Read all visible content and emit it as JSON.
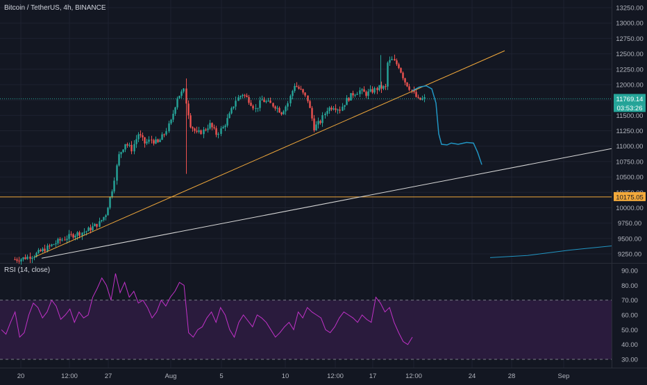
{
  "header": {
    "title": "Bitcoin / TetherUS, 4h, BINANCE"
  },
  "rsi_panel": {
    "title": "RSI (14, close)"
  },
  "price_axis": {
    "ticks": [
      "13250.00",
      "13000.00",
      "12750.00",
      "12500.00",
      "12250.00",
      "12000.00",
      "11750.00",
      "11500.00",
      "11250.00",
      "11000.00",
      "10750.00",
      "10500.00",
      "10250.00",
      "10000.00",
      "9750.00",
      "9500.00",
      "9250.00"
    ],
    "last_price_label": "11769.14",
    "countdown_label": "03:53:26",
    "line_price_label": "10175.05"
  },
  "rsi_axis": {
    "ticks": [
      "90.00",
      "80.00",
      "70.00",
      "60.00",
      "50.00",
      "40.00",
      "30.00"
    ]
  },
  "time_axis": {
    "ticks": [
      "20",
      "12:00",
      "27",
      "Aug",
      "5",
      "10",
      "12:00",
      "17",
      "12:00",
      "24",
      "28",
      "Sep"
    ]
  },
  "colors": {
    "background": "#131722",
    "up": "#26a69a",
    "down": "#ef5350",
    "trendline_orange": "#f2a93b",
    "support_white": "#d9d9d9",
    "horizontal_line": "#f2a93b",
    "last_price_line": "#26a69a",
    "projection_blue": "#2196c4",
    "rsi_line": "#c232c9",
    "rsi_band": "#2a1b3d",
    "axis_text": "#b2b5be"
  },
  "chart_data": {
    "type": "candlestick",
    "symbol": "Bitcoin / TetherUS",
    "interval": "4h",
    "exchange": "BINANCE",
    "ylim": [
      9200,
      13350
    ],
    "last_price": 11769.14,
    "horizontal_level": 10175.05,
    "price_path": [
      [
        "Jul 19 12:00",
        9160
      ],
      [
        "Jul 20 00:00",
        9170
      ],
      [
        "Jul 21 00:00",
        9230
      ],
      [
        "Jul 22 00:00",
        9350
      ],
      [
        "Jul 23 00:00",
        9470
      ],
      [
        "Jul 24 00:00",
        9560
      ],
      [
        "Jul 25 00:00",
        9620
      ],
      [
        "Jul 26 00:00",
        9750
      ],
      [
        "Jul 26 12:00",
        9900
      ],
      [
        "Jul 27 00:00",
        10300
      ],
      [
        "Jul 27 12:00",
        10850
      ],
      [
        "Jul 28 00:00",
        11050
      ],
      [
        "Jul 28 12:00",
        10950
      ],
      [
        "Jul 29 00:00",
        11200
      ],
      [
        "Jul 29 12:00",
        11050
      ],
      [
        "Jul 30 00:00",
        11100
      ],
      [
        "Jul 30 12:00",
        11050
      ],
      [
        "Jul 31 00:00",
        11200
      ],
      [
        "Jul 31 12:00",
        11400
      ],
      [
        "Aug 1 00:00",
        11800
      ],
      [
        "Aug 1 12:00",
        11900
      ],
      [
        "Aug 2 00:00",
        11350
      ],
      [
        "Aug 2 12:00",
        11200
      ],
      [
        "Aug 3 00:00",
        11250
      ],
      [
        "Aug 3 12:00",
        11350
      ],
      [
        "Aug 4 00:00",
        11200
      ],
      [
        "Aug 4 12:00",
        11300
      ],
      [
        "Aug 5 00:00",
        11500
      ],
      [
        "Aug 5 12:00",
        11750
      ],
      [
        "Aug 6 00:00",
        11850
      ],
      [
        "Aug 6 12:00",
        11750
      ],
      [
        "Aug 7 00:00",
        11600
      ],
      [
        "Aug 7 12:00",
        11750
      ],
      [
        "Aug 8 00:00",
        11700
      ],
      [
        "Aug 8 12:00",
        11650
      ],
      [
        "Aug 9 00:00",
        11550
      ],
      [
        "Aug 9 12:00",
        11700
      ],
      [
        "Aug 10 00:00",
        12000
      ],
      [
        "Aug 10 12:00",
        11900
      ],
      [
        "Aug 11 00:00",
        11750
      ],
      [
        "Aug 11 12:00",
        11300
      ],
      [
        "Aug 12 00:00",
        11400
      ],
      [
        "Aug 12 12:00",
        11600
      ],
      [
        "Aug 13 00:00",
        11650
      ],
      [
        "Aug 13 12:00",
        11600
      ],
      [
        "Aug 14 00:00",
        11750
      ],
      [
        "Aug 14 12:00",
        11850
      ],
      [
        "Aug 15 00:00",
        11900
      ],
      [
        "Aug 15 12:00",
        11850
      ],
      [
        "Aug 16 00:00",
        11900
      ],
      [
        "Aug 16 12:00",
        11950
      ],
      [
        "Aug 17 00:00",
        11950
      ],
      [
        "Aug 17 04:00",
        12350
      ],
      [
        "Aug 17 12:00",
        12400
      ],
      [
        "Aug 18 00:00",
        12300
      ],
      [
        "Aug 18 12:00",
        12050
      ],
      [
        "Aug 19 00:00",
        11900
      ],
      [
        "Aug 19 12:00",
        11750
      ],
      [
        "Aug 20 00:00",
        11769
      ]
    ],
    "rsi": {
      "name": "RSI (14, close)",
      "ylim": [
        25,
        95
      ],
      "levels": [
        70,
        30
      ],
      "values": [
        50,
        47,
        55,
        62,
        45,
        48,
        60,
        68,
        65,
        58,
        62,
        70,
        66,
        57,
        60,
        64,
        55,
        62,
        58,
        60,
        72,
        78,
        85,
        80,
        70,
        88,
        75,
        82,
        72,
        76,
        68,
        70,
        65,
        58,
        62,
        70,
        66,
        72,
        76,
        82,
        80,
        48,
        45,
        50,
        52,
        58,
        62,
        55,
        65,
        60,
        50,
        45,
        55,
        60,
        56,
        52,
        60,
        58,
        55,
        50,
        45,
        48,
        52,
        55,
        50,
        62,
        58,
        65,
        62,
        60,
        58,
        50,
        48,
        52,
        58,
        62,
        60,
        58,
        55,
        60,
        57,
        55,
        72,
        68,
        62,
        65,
        55,
        48,
        42,
        40,
        45
      ]
    }
  }
}
